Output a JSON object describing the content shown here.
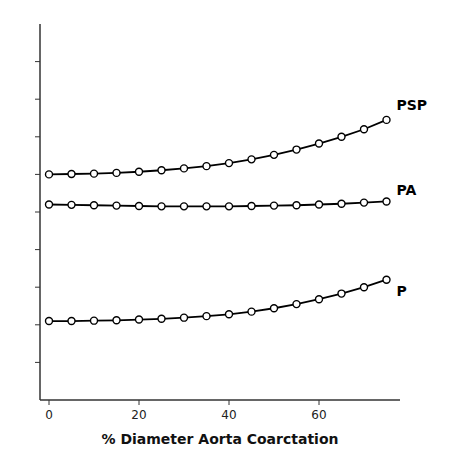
{
  "chart_data": {
    "type": "line",
    "xlabel": "% Diameter Aorta Coarctation",
    "x": [
      0,
      5,
      10,
      15,
      20,
      25,
      30,
      35,
      40,
      45,
      50,
      55,
      60,
      65,
      70,
      75
    ],
    "series": [
      {
        "name": "PSP",
        "color": "#000000",
        "marker": "circle",
        "values": [
          120.0,
          120.1,
          120.2,
          120.4,
          120.7,
          121.1,
          121.6,
          122.2,
          123.0,
          124.0,
          125.2,
          126.6,
          128.2,
          130.0,
          132.0,
          134.5
        ]
      },
      {
        "name": "PA",
        "color": "#000000",
        "marker": "circle",
        "values": [
          112.0,
          111.9,
          111.8,
          111.7,
          111.6,
          111.5,
          111.5,
          111.5,
          111.5,
          111.6,
          111.7,
          111.8,
          112.0,
          112.2,
          112.5,
          112.8
        ]
      },
      {
        "name": "P",
        "color": "#000000",
        "marker": "circle",
        "values": [
          81.0,
          81.0,
          81.1,
          81.2,
          81.4,
          81.6,
          81.9,
          82.3,
          82.8,
          83.5,
          84.4,
          85.5,
          86.8,
          88.3,
          90.0,
          92.0
        ]
      }
    ],
    "xlim": [
      -2,
      78
    ],
    "ylim": [
      60,
      160
    ],
    "xticks": [
      0,
      20,
      40,
      60
    ],
    "yticks": [
      70,
      80,
      90,
      100,
      110,
      120,
      130,
      140,
      150
    ],
    "tick_labels": "x",
    "grid": false
  }
}
